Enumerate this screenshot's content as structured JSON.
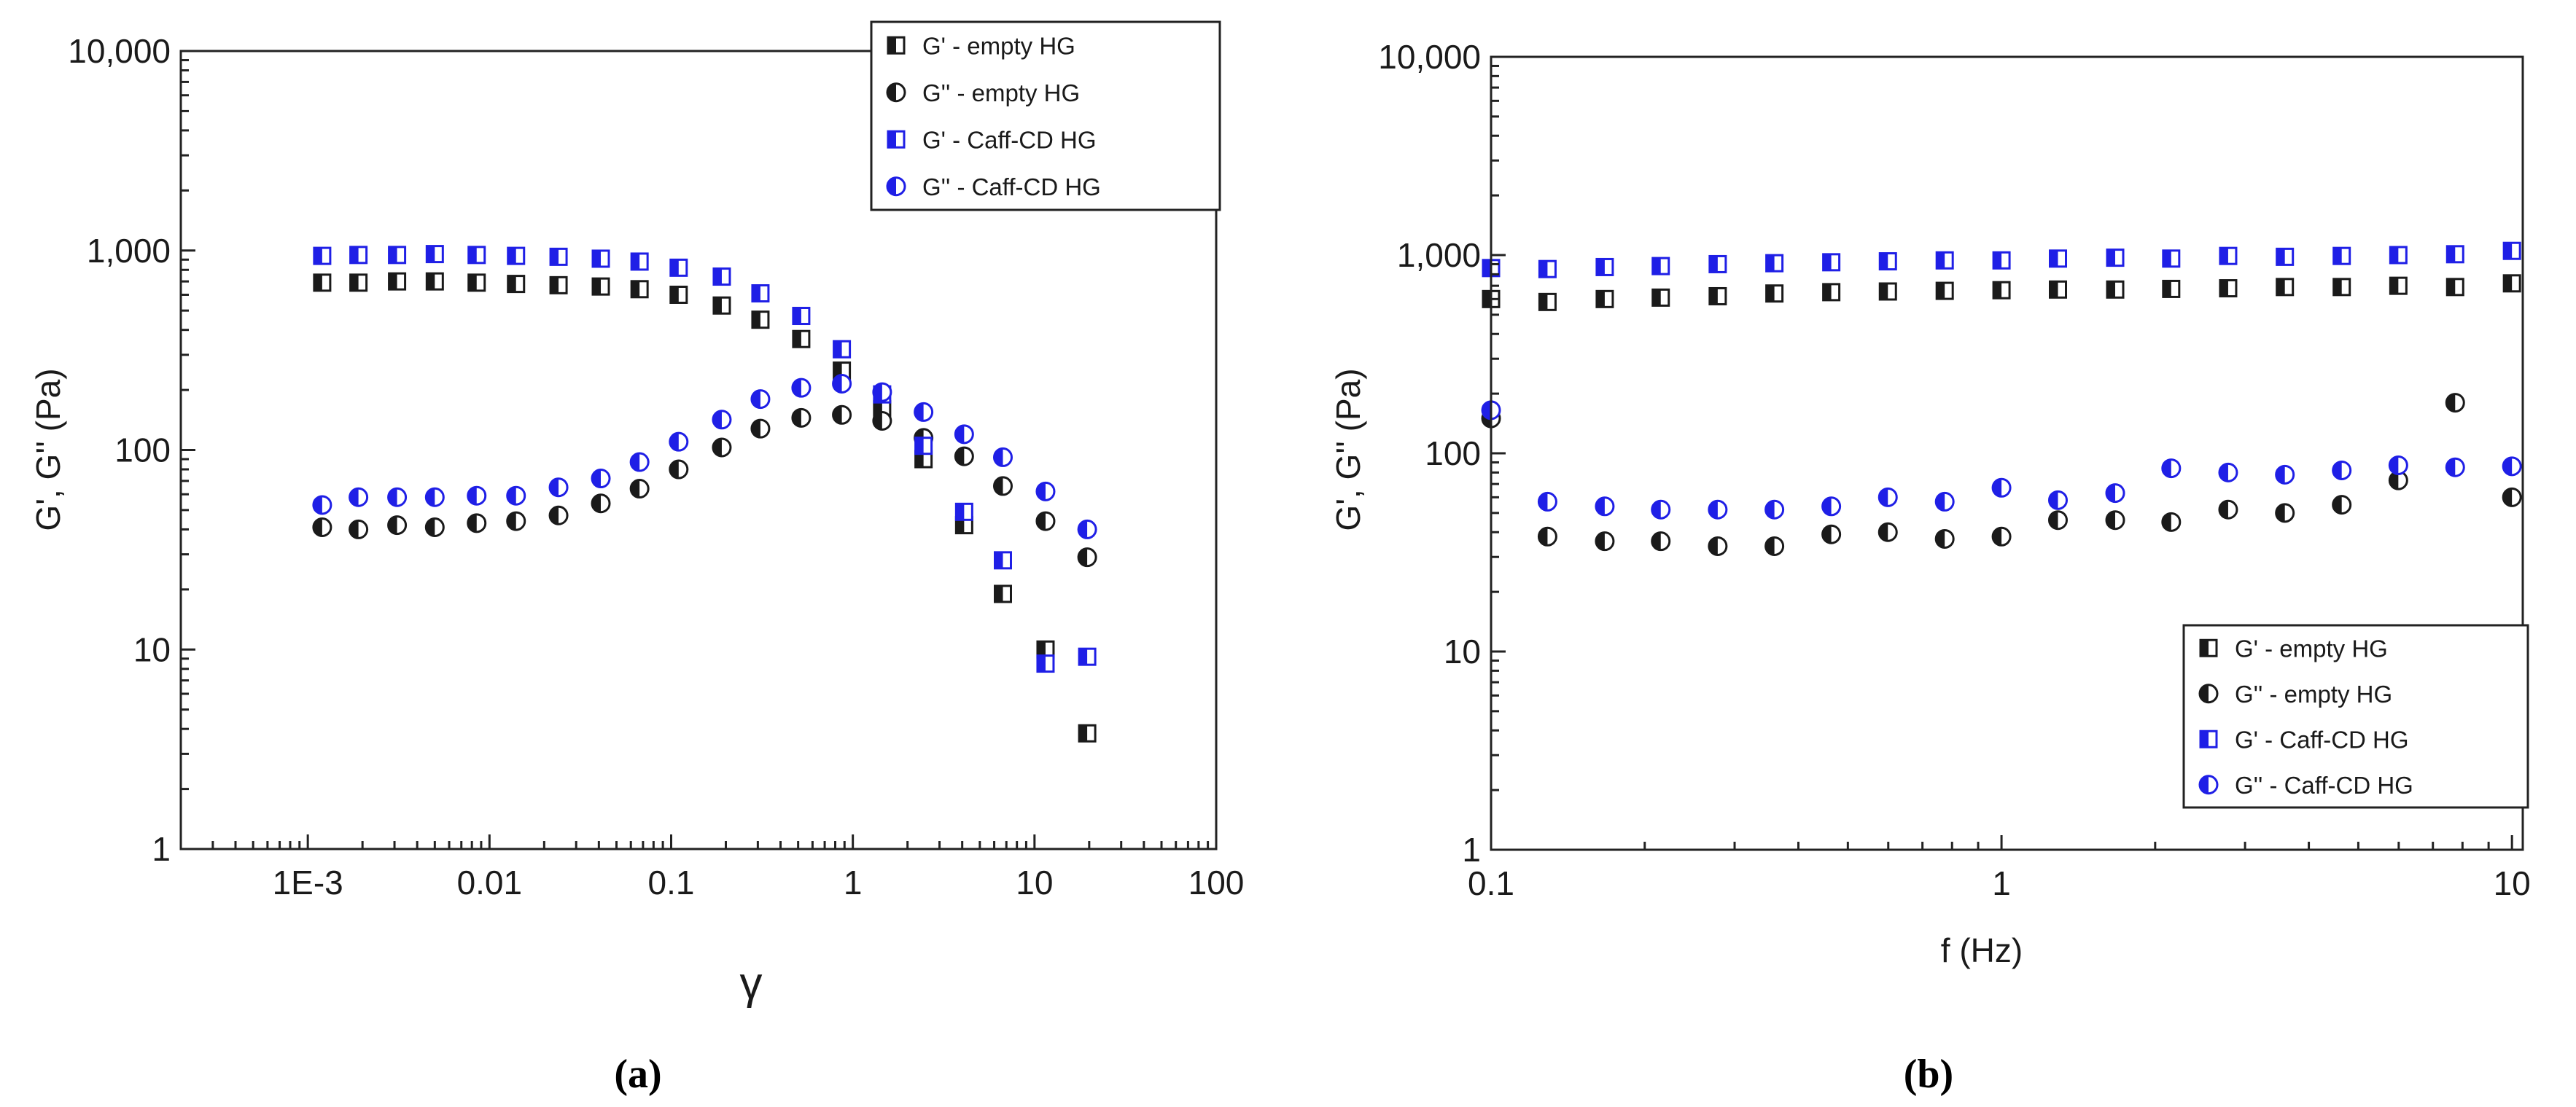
{
  "colors": {
    "black_series": "#1a1a1a",
    "blue_series": "#1f1fe6",
    "axis": "#222222"
  },
  "chart_data": [
    {
      "type": "scatter",
      "panel_caption": "(a)",
      "xlabel": "γ",
      "ylabel": "G', G'' (Pa)",
      "x_scale": "log",
      "y_scale": "log",
      "xlim": [
        0.0002,
        100
      ],
      "ylim": [
        1,
        10000
      ],
      "x_ticks": [
        {
          "value": 0.001,
          "label": "1E-3"
        },
        {
          "value": 0.01,
          "label": "0.01"
        },
        {
          "value": 0.1,
          "label": "0.1"
        },
        {
          "value": 1,
          "label": "1"
        },
        {
          "value": 10,
          "label": "10"
        },
        {
          "value": 100,
          "label": "100"
        }
      ],
      "y_ticks": [
        {
          "value": 1,
          "label": "1"
        },
        {
          "value": 10,
          "label": "10"
        },
        {
          "value": 100,
          "label": "100"
        },
        {
          "value": 1000,
          "label": "1,000"
        },
        {
          "value": 10000,
          "label": "10,000"
        }
      ],
      "grid": false,
      "legend_position": "top-right",
      "series": [
        {
          "name": "G' - empty HG",
          "marker": "square-half",
          "color": "#1a1a1a",
          "x": [
            0.0012,
            0.0019,
            0.0031,
            0.005,
            0.0085,
            0.014,
            0.024,
            0.041,
            0.067,
            0.11,
            0.19,
            0.31,
            0.52,
            0.87,
            1.45,
            2.45,
            4.1,
            6.7,
            11.5,
            19.5
          ],
          "y": [
            690,
            690,
            700,
            700,
            690,
            680,
            670,
            660,
            640,
            600,
            530,
            450,
            360,
            250,
            160,
            90,
            42,
            19,
            10,
            3.8
          ]
        },
        {
          "name": "G'' - empty HG",
          "marker": "circle-half",
          "color": "#1a1a1a",
          "x": [
            0.0012,
            0.0019,
            0.0031,
            0.005,
            0.0085,
            0.014,
            0.024,
            0.041,
            0.067,
            0.11,
            0.19,
            0.31,
            0.52,
            0.87,
            1.45,
            2.45,
            4.1,
            6.7,
            11.5,
            19.5
          ],
          "y": [
            41,
            40,
            42,
            41,
            43,
            44,
            47,
            54,
            64,
            80,
            103,
            128,
            145,
            150,
            140,
            115,
            93,
            66,
            44,
            29
          ]
        },
        {
          "name": "G' - Caff-CD HG",
          "marker": "square-half",
          "color": "#1f1fe6",
          "x": [
            0.0012,
            0.0019,
            0.0031,
            0.005,
            0.0085,
            0.014,
            0.024,
            0.041,
            0.067,
            0.11,
            0.19,
            0.31,
            0.52,
            0.87,
            1.45,
            2.45,
            4.1,
            6.7,
            11.5,
            19.5
          ],
          "y": [
            940,
            950,
            950,
            960,
            950,
            940,
            930,
            910,
            880,
            820,
            740,
            610,
            470,
            320,
            190,
            105,
            49,
            28,
            8.5,
            9.2
          ]
        },
        {
          "name": "G'' - Caff-CD HG",
          "marker": "circle-half",
          "color": "#1f1fe6",
          "x": [
            0.0012,
            0.0019,
            0.0031,
            0.005,
            0.0085,
            0.014,
            0.024,
            0.041,
            0.067,
            0.11,
            0.19,
            0.31,
            0.52,
            0.87,
            1.45,
            2.45,
            4.1,
            6.7,
            11.5,
            19.5
          ],
          "y": [
            53,
            58,
            58,
            58,
            59,
            59,
            65,
            72,
            87,
            110,
            142,
            180,
            205,
            215,
            195,
            155,
            120,
            92,
            62,
            40
          ]
        }
      ]
    },
    {
      "type": "scatter",
      "panel_caption": "(b)",
      "xlabel": "f (Hz)",
      "ylabel": "G', G'' (Pa)",
      "x_scale": "log",
      "y_scale": "log",
      "xlim": [
        0.1,
        10.5
      ],
      "ylim": [
        1,
        10000
      ],
      "x_ticks": [
        {
          "value": 0.1,
          "label": "0.1"
        },
        {
          "value": 1,
          "label": "1"
        },
        {
          "value": 10,
          "label": "10"
        }
      ],
      "y_ticks": [
        {
          "value": 1,
          "label": "1"
        },
        {
          "value": 10,
          "label": "10"
        },
        {
          "value": 100,
          "label": "100"
        },
        {
          "value": 1000,
          "label": "1,000"
        },
        {
          "value": 10000,
          "label": "10,000"
        }
      ],
      "grid": false,
      "legend_position": "bottom-right",
      "series": [
        {
          "name": "G' - empty HG",
          "marker": "square-half",
          "color": "#1a1a1a",
          "x": [
            0.1,
            0.129,
            0.167,
            0.215,
            0.278,
            0.359,
            0.464,
            0.599,
            0.774,
            1.0,
            1.29,
            1.67,
            2.15,
            2.78,
            3.59,
            4.64,
            5.99,
            7.74,
            10.0
          ],
          "y": [
            600,
            580,
            600,
            610,
            620,
            640,
            650,
            655,
            660,
            665,
            670,
            670,
            675,
            680,
            690,
            690,
            700,
            690,
            720
          ]
        },
        {
          "name": "G'' - empty HG",
          "marker": "circle-half",
          "color": "#1a1a1a",
          "x": [
            0.1,
            0.129,
            0.167,
            0.215,
            0.278,
            0.359,
            0.464,
            0.599,
            0.774,
            1.0,
            1.29,
            1.67,
            2.15,
            2.78,
            3.59,
            4.64,
            5.99,
            7.74,
            10.0
          ],
          "y": [
            150,
            38,
            36,
            36,
            34,
            34,
            39,
            40,
            37,
            38,
            46,
            46,
            45,
            52,
            50,
            55,
            73,
            180,
            60
          ]
        },
        {
          "name": "G' - Caff-CD HG",
          "marker": "square-half",
          "color": "#1f1fe6",
          "x": [
            0.1,
            0.129,
            0.167,
            0.215,
            0.278,
            0.359,
            0.464,
            0.599,
            0.774,
            1.0,
            1.29,
            1.67,
            2.15,
            2.78,
            3.59,
            4.64,
            5.99,
            7.74,
            10.0
          ],
          "y": [
            860,
            850,
            870,
            880,
            900,
            910,
            920,
            930,
            940,
            940,
            960,
            970,
            960,
            990,
            980,
            990,
            1000,
            1010,
            1050
          ]
        },
        {
          "name": "G'' - Caff-CD HG",
          "marker": "circle-half",
          "color": "#1f1fe6",
          "x": [
            0.1,
            0.129,
            0.167,
            0.215,
            0.278,
            0.359,
            0.464,
            0.599,
            0.774,
            1.0,
            1.29,
            1.67,
            2.15,
            2.78,
            3.59,
            4.64,
            5.99,
            7.74,
            10.0
          ],
          "y": [
            165,
            57,
            54,
            52,
            52,
            52,
            54,
            60,
            57,
            67,
            58,
            63,
            84,
            80,
            78,
            82,
            87,
            85,
            86
          ]
        }
      ]
    }
  ]
}
